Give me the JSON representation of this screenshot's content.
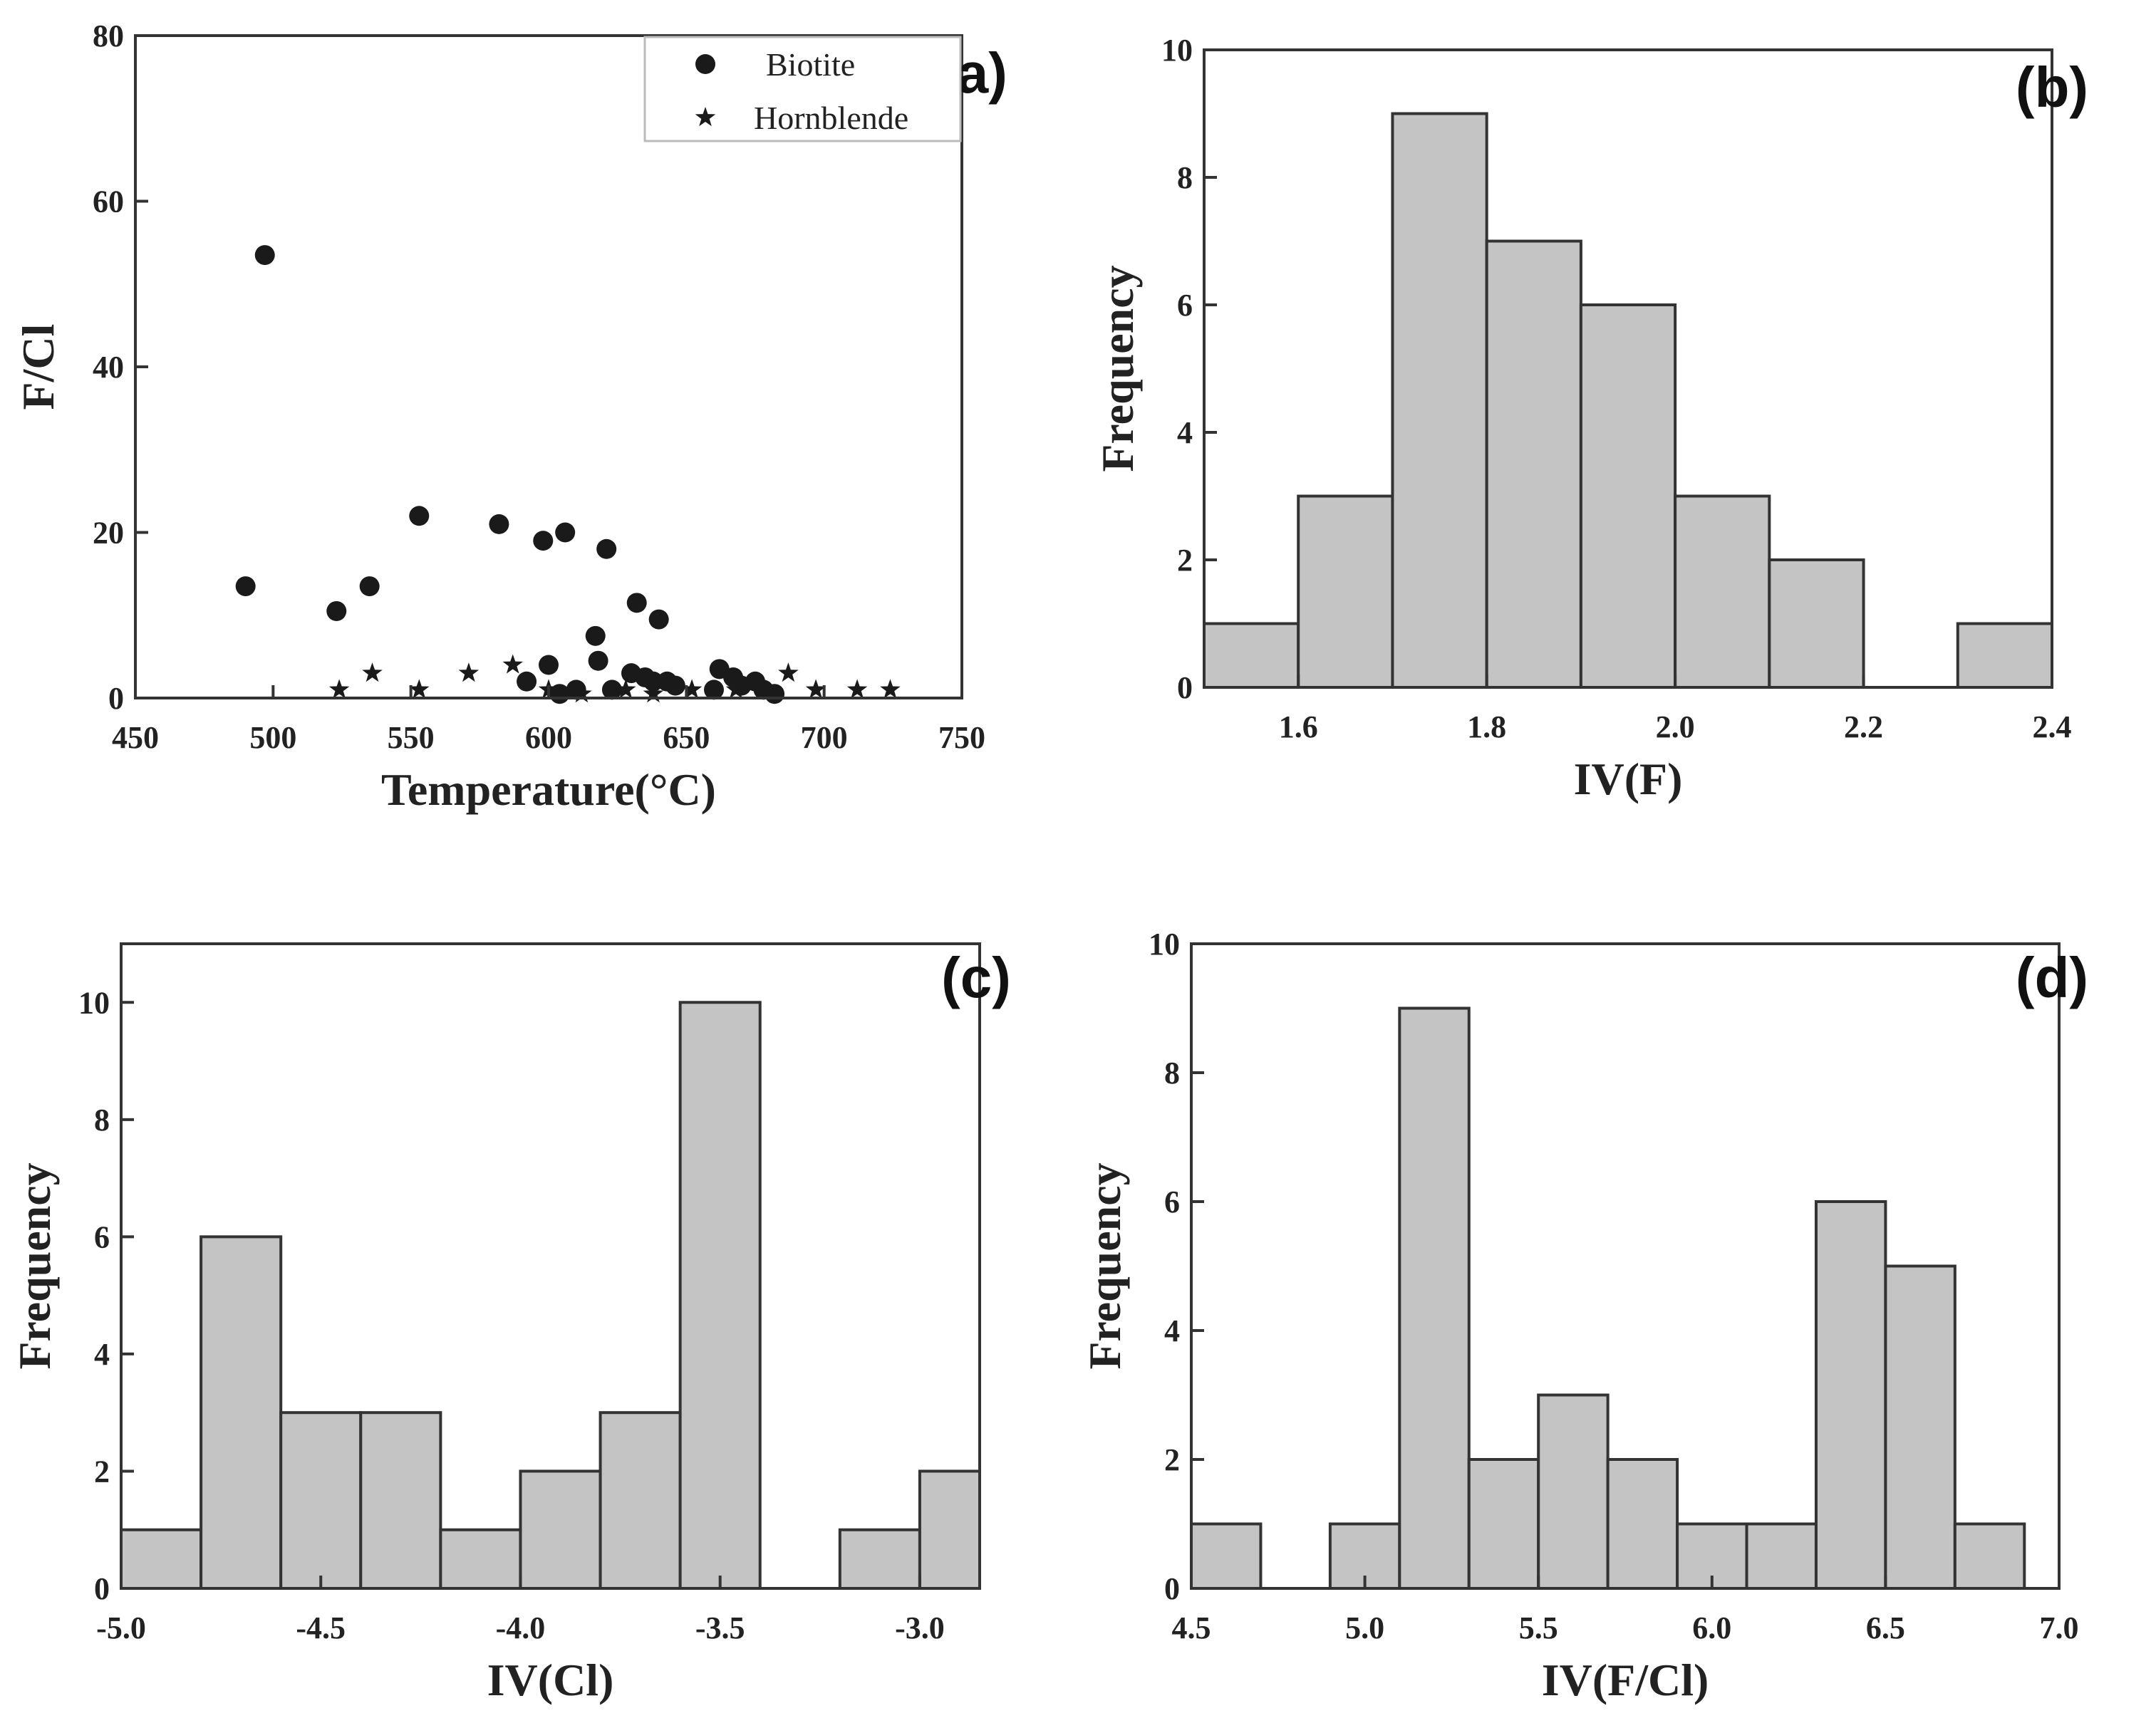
{
  "colors": {
    "bar_fill": "#c4c4c4",
    "bar_stroke": "#333333",
    "axis": "#333333",
    "marker": "#1a1a1a"
  },
  "chart_data": [
    {
      "id": "a",
      "type": "scatter",
      "panel_label": "(a)",
      "xlabel": "Temperature(°C)",
      "ylabel": "F/Cl",
      "xlim": [
        450,
        750
      ],
      "ylim": [
        0,
        80
      ],
      "xticks": [
        450,
        500,
        550,
        600,
        650,
        700,
        750
      ],
      "yticks": [
        0,
        20,
        40,
        60,
        80
      ],
      "legend": {
        "placement": "top-right",
        "entries": [
          "Biotite",
          "Hornblende"
        ]
      },
      "series": [
        {
          "name": "Biotite",
          "marker": "circle",
          "points": [
            [
              490,
              13.5
            ],
            [
              497,
              53.5
            ],
            [
              523,
              10.5
            ],
            [
              535,
              13.5
            ],
            [
              553,
              22
            ],
            [
              582,
              21
            ],
            [
              598,
              19
            ],
            [
              600,
              4
            ],
            [
              592,
              2
            ],
            [
              606,
              20
            ],
            [
              604,
              0.5
            ],
            [
              610,
              1
            ],
            [
              617,
              7.5
            ],
            [
              618,
              4.5
            ],
            [
              621,
              18
            ],
            [
              623,
              1
            ],
            [
              632,
              11.5
            ],
            [
              630,
              3
            ],
            [
              635,
              2.5
            ],
            [
              638,
              2
            ],
            [
              640,
              9.5
            ],
            [
              643,
              2
            ],
            [
              646,
              1.5
            ],
            [
              662,
              3.5
            ],
            [
              667,
              2.5
            ],
            [
              670,
              1.5
            ],
            [
              675,
              2
            ],
            [
              678,
              1
            ],
            [
              682,
              0.5
            ],
            [
              660,
              1
            ]
          ]
        },
        {
          "name": "Hornblende",
          "marker": "star",
          "points": [
            [
              524,
              1
            ],
            [
              536,
              3
            ],
            [
              553,
              1
            ],
            [
              571,
              3
            ],
            [
              587,
              4
            ],
            [
              600,
              1
            ],
            [
              612,
              0.5
            ],
            [
              628,
              1
            ],
            [
              638,
              0.5
            ],
            [
              652,
              1
            ],
            [
              668,
              1
            ],
            [
              687,
              3
            ],
            [
              697,
              1
            ],
            [
              712,
              1
            ],
            [
              724,
              1
            ]
          ]
        }
      ]
    },
    {
      "id": "b",
      "type": "bar",
      "panel_label": "(b)",
      "xlabel": "IV(F)",
      "ylabel": "Frequency",
      "xlim": [
        1.5,
        2.4
      ],
      "ylim": [
        0,
        10
      ],
      "xticks": [
        "1.6",
        "1.8",
        "2.0",
        "2.2",
        "2.4"
      ],
      "yticks": [
        0,
        2,
        4,
        6,
        8,
        10
      ],
      "bins": [
        [
          1.5,
          1.6
        ],
        [
          1.6,
          1.7
        ],
        [
          1.7,
          1.8
        ],
        [
          1.8,
          1.9
        ],
        [
          1.9,
          2.0
        ],
        [
          2.0,
          2.1
        ],
        [
          2.1,
          2.2
        ],
        [
          2.2,
          2.3
        ],
        [
          2.3,
          2.4
        ]
      ],
      "values": [
        1,
        3,
        9,
        7,
        6,
        3,
        2,
        0,
        1
      ]
    },
    {
      "id": "c",
      "type": "bar",
      "panel_label": "(c)",
      "xlabel": "IV(Cl)",
      "ylabel": "Frequency",
      "xlim": [
        -5.0,
        -2.85
      ],
      "ylim": [
        0,
        11
      ],
      "xticks": [
        "-5.0",
        "-4.5",
        "-4.0",
        "-3.5",
        "-3.0"
      ],
      "yticks": [
        0,
        2,
        4,
        6,
        8,
        10
      ],
      "bins": [
        [
          -5.0,
          -4.8
        ],
        [
          -4.8,
          -4.6
        ],
        [
          -4.6,
          -4.4
        ],
        [
          -4.4,
          -4.2
        ],
        [
          -4.2,
          -4.0
        ],
        [
          -4.0,
          -3.8
        ],
        [
          -3.8,
          -3.6
        ],
        [
          -3.6,
          -3.4
        ],
        [
          -3.4,
          -3.2
        ],
        [
          -3.2,
          -3.0
        ],
        [
          -3.0,
          -2.85
        ]
      ],
      "values": [
        1,
        6,
        3,
        3,
        1,
        2,
        3,
        10,
        0,
        1,
        2
      ]
    },
    {
      "id": "d",
      "type": "bar",
      "panel_label": "(d)",
      "xlabel": "IV(F/Cl)",
      "ylabel": "Frequency",
      "xlim": [
        4.5,
        7.0
      ],
      "ylim": [
        0,
        10
      ],
      "xticks": [
        "4.5",
        "5.0",
        "5.5",
        "6.0",
        "6.5",
        "7.0"
      ],
      "yticks": [
        0,
        2,
        4,
        6,
        8,
        10
      ],
      "bins": [
        [
          4.5,
          4.7
        ],
        [
          4.7,
          4.9
        ],
        [
          4.9,
          5.1
        ],
        [
          5.1,
          5.3
        ],
        [
          5.3,
          5.5
        ],
        [
          5.5,
          5.7
        ],
        [
          5.7,
          5.9
        ],
        [
          5.9,
          6.1
        ],
        [
          6.1,
          6.3
        ],
        [
          6.3,
          6.5
        ],
        [
          6.5,
          6.7
        ],
        [
          6.7,
          6.9
        ]
      ],
      "values": [
        1,
        0,
        1,
        9,
        2,
        3,
        2,
        1,
        1,
        6,
        5,
        1
      ]
    }
  ]
}
